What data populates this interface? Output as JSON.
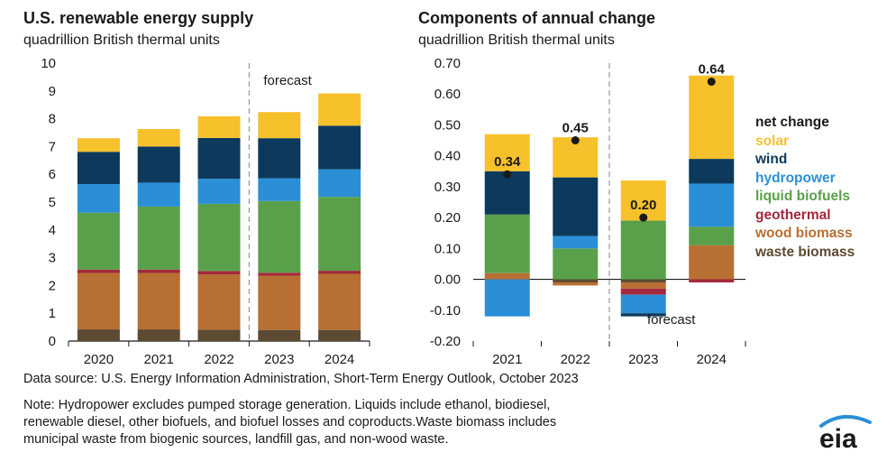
{
  "colors": {
    "waste_biomass": "#5c4a33",
    "wood_biomass": "#b86f33",
    "geothermal": "#a3293d",
    "liquid_biofuels": "#5aa04a",
    "hydropower": "#2a8fd6",
    "wind": "#0d3a5c",
    "solar": "#f7c12c",
    "net_change": "#1a1a1a",
    "axis": "#1a1a1a",
    "divider": "#999999"
  },
  "left_title": "U.S. renewable energy supply",
  "left_subtitle": "quadrillion British thermal units",
  "right_title": "Components of annual change",
  "right_subtitle": "quadrillion British thermal units",
  "legend": [
    {
      "key": "net_change",
      "label": "net change"
    },
    {
      "key": "solar",
      "label": "solar"
    },
    {
      "key": "wind",
      "label": "wind"
    },
    {
      "key": "hydropower",
      "label": "hydropower"
    },
    {
      "key": "liquid_biofuels",
      "label": "liquid biofuels"
    },
    {
      "key": "geothermal",
      "label": "geothermal"
    },
    {
      "key": "wood_biomass",
      "label": "wood biomass"
    },
    {
      "key": "waste_biomass",
      "label": "waste biomass"
    }
  ],
  "source_text": "Data source: U.S. Energy Information Administration, Short-Term Energy Outlook, October 2023",
  "note_lines": [
    "Note: Hydropower excludes pumped storage generation. Liquids include ethanol, biodiesel,",
    "renewable diesel, other biofuels, and biofuel losses and coproducts.Waste biomass includes",
    "municipal waste from biogenic sources, landfill gas, and non-wood waste."
  ],
  "logo_text": "eia",
  "chart_data": [
    {
      "type": "bar",
      "stacked": true,
      "title": "U.S. renewable energy supply",
      "ylabel": "quadrillion British thermal units",
      "categories": [
        "2020",
        "2021",
        "2022",
        "2023",
        "2024"
      ],
      "ylim": [
        0,
        10
      ],
      "yticks": [
        "0",
        "1",
        "2",
        "3",
        "4",
        "5",
        "6",
        "7",
        "8",
        "9",
        "10"
      ],
      "forecast_label": "forecast",
      "forecast_from": "2023",
      "series": [
        {
          "name": "waste biomass",
          "key": "waste_biomass",
          "values": [
            0.42,
            0.42,
            0.41,
            0.4,
            0.4
          ]
        },
        {
          "name": "wood biomass",
          "key": "wood_biomass",
          "values": [
            2.03,
            2.03,
            1.99,
            1.95,
            2.02
          ]
        },
        {
          "name": "geothermal",
          "key": "geothermal",
          "values": [
            0.12,
            0.12,
            0.12,
            0.11,
            0.11
          ]
        },
        {
          "name": "liquid biofuels",
          "key": "liquid_biofuels",
          "values": [
            2.05,
            2.27,
            2.42,
            2.58,
            2.66
          ]
        },
        {
          "name": "hydropower",
          "key": "hydropower",
          "values": [
            1.03,
            0.86,
            0.9,
            0.82,
            0.99
          ]
        },
        {
          "name": "wind",
          "key": "wind",
          "values": [
            1.16,
            1.3,
            1.47,
            1.44,
            1.57
          ]
        },
        {
          "name": "solar",
          "key": "solar",
          "values": [
            0.49,
            0.63,
            0.78,
            0.94,
            1.16
          ]
        }
      ]
    },
    {
      "type": "bar",
      "stacked": true,
      "title": "Components of annual change",
      "ylabel": "quadrillion British thermal units",
      "categories": [
        "2021",
        "2022",
        "2023",
        "2024"
      ],
      "ylim": [
        -0.2,
        0.7
      ],
      "yticks": [
        "0.70",
        "0.60",
        "0.50",
        "0.40",
        "0.30",
        "0.20",
        "0.10",
        "0.00",
        "-0.10",
        "-0.20"
      ],
      "forecast_label": "forecast",
      "forecast_from": "2023",
      "series": [
        {
          "name": "waste biomass",
          "key": "waste_biomass",
          "values": [
            0.0,
            -0.01,
            -0.01,
            0.0
          ]
        },
        {
          "name": "wood biomass",
          "key": "wood_biomass",
          "values": [
            0.02,
            -0.01,
            -0.02,
            0.11
          ]
        },
        {
          "name": "geothermal",
          "key": "geothermal",
          "values": [
            0.0,
            0.0,
            -0.02,
            -0.01
          ]
        },
        {
          "name": "liquid biofuels",
          "key": "liquid_biofuels",
          "values": [
            0.19,
            0.1,
            0.19,
            0.06
          ]
        },
        {
          "name": "hydropower",
          "key": "hydropower",
          "values": [
            -0.12,
            0.04,
            -0.06,
            0.14
          ]
        },
        {
          "name": "wind",
          "key": "wind",
          "values": [
            0.14,
            0.19,
            -0.01,
            0.08
          ]
        },
        {
          "name": "solar",
          "key": "solar",
          "values": [
            0.12,
            0.13,
            0.13,
            0.27
          ]
        }
      ],
      "net_change": {
        "values": [
          0.34,
          0.45,
          0.2,
          0.64
        ],
        "labels": [
          "0.34",
          "0.45",
          "0.20",
          "0.64"
        ]
      }
    }
  ]
}
